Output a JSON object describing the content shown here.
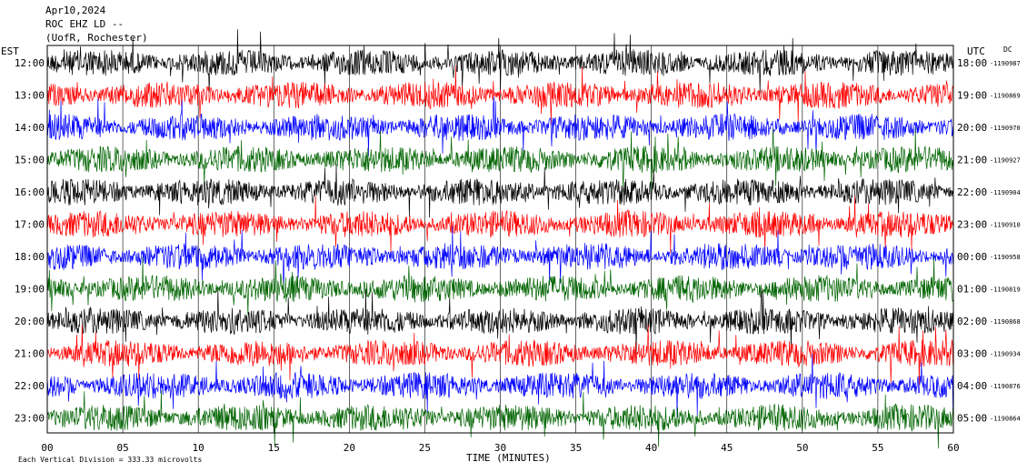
{
  "header": {
    "date": "Apr10,2024",
    "channel": "ROC EHZ LD --",
    "station": "(UofR, Rochester)"
  },
  "chart_data": {
    "type": "line",
    "title": "",
    "left_axis_label": "EST",
    "right_axis_label": "UTC",
    "dc_label": "DC",
    "xlabel": "TIME (MINUTES)",
    "xlim": [
      0,
      60
    ],
    "x_ticks": [
      "00",
      "05",
      "10",
      "15",
      "20",
      "25",
      "30",
      "35",
      "40",
      "45",
      "50",
      "55",
      "60"
    ],
    "rows": [
      {
        "est": "12:00",
        "utc": "18:00",
        "dc": "-1190987"
      },
      {
        "est": "13:00",
        "utc": "19:00",
        "dc": "-1190869"
      },
      {
        "est": "14:00",
        "utc": "20:00",
        "dc": "-1190970"
      },
      {
        "est": "15:00",
        "utc": "21:00",
        "dc": "-1190927"
      },
      {
        "est": "16:00",
        "utc": "22:00",
        "dc": "-1190904"
      },
      {
        "est": "17:00",
        "utc": "23:00",
        "dc": "-1190910"
      },
      {
        "est": "18:00",
        "utc": "00:00",
        "dc": "-1190958"
      },
      {
        "est": "19:00",
        "utc": "01:00",
        "dc": "-1190819"
      },
      {
        "est": "20:00",
        "utc": "02:00",
        "dc": "-1190868"
      },
      {
        "est": "21:00",
        "utc": "03:00",
        "dc": "-1190934"
      },
      {
        "est": "22:00",
        "utc": "04:00",
        "dc": "-1190876"
      },
      {
        "est": "23:00",
        "utc": "05:00",
        "dc": "-1190864"
      }
    ],
    "trace_colors": [
      "#000000",
      "#ff0000",
      "#0000ff",
      "#006400"
    ],
    "grid": true,
    "footer_text": "Each Vertical Division = 333.33 microvolts"
  }
}
